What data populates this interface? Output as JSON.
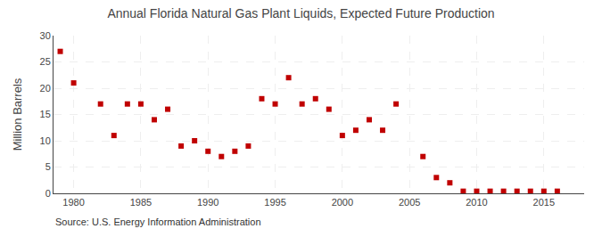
{
  "chart_data": {
    "type": "scatter",
    "title": "Annual Florida Natural Gas Plant Liquids, Expected Future Production",
    "ylabel": "Million Barrels",
    "annotations": [
      "Source: U.S. Energy Information Administration"
    ],
    "x": [
      1979,
      1980,
      1982,
      1983,
      1984,
      1985,
      1986,
      1987,
      1988,
      1989,
      1990,
      1991,
      1992,
      1993,
      1994,
      1995,
      1996,
      1997,
      1998,
      1999,
      2000,
      2001,
      2002,
      2003,
      2004,
      2006,
      2007,
      2008,
      2009,
      2010,
      2011,
      2012,
      2013,
      2014,
      2015,
      2016
    ],
    "values": [
      27,
      21,
      17,
      11,
      17,
      17,
      14,
      16,
      9,
      10,
      8,
      7,
      8,
      9,
      18,
      17,
      22,
      17,
      18,
      16,
      11,
      12,
      14,
      12,
      17,
      7,
      3,
      2,
      0.4,
      0.4,
      0.4,
      0.4,
      0.4,
      0.4,
      0.4,
      0.4
    ],
    "color": "#c00000",
    "marker": "square",
    "xlim": [
      1978.5,
      2018
    ],
    "ylim": [
      0,
      30
    ],
    "xticks": [
      1980,
      1985,
      1990,
      1995,
      2000,
      2005,
      2010,
      2015
    ],
    "yticks": [
      0,
      5,
      10,
      15,
      20,
      25,
      30
    ],
    "grid": true
  }
}
